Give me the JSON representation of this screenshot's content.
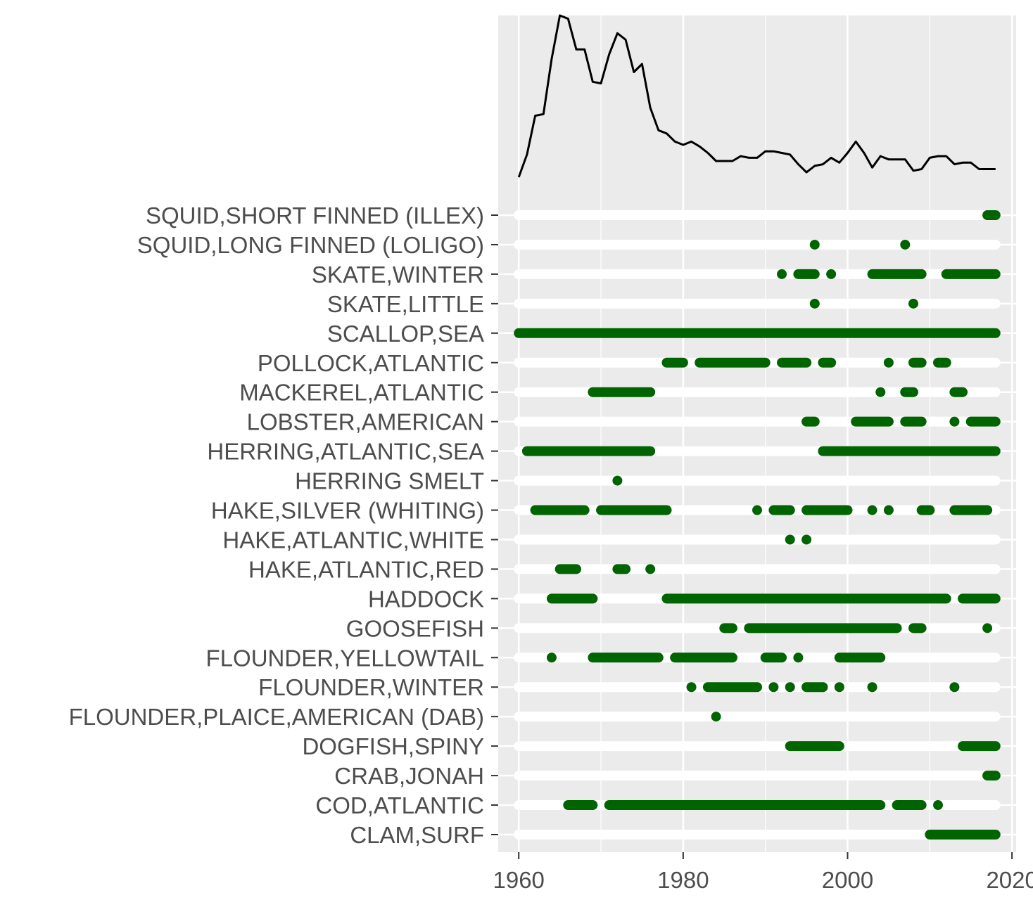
{
  "chart_data": [
    {
      "type": "line",
      "title": "",
      "xlabel": "",
      "ylabel": "",
      "xlim": [
        1957.5,
        2020.5
      ],
      "ylim": [
        0,
        1
      ],
      "grid": true,
      "legend": "none",
      "series_color": "#000000",
      "x": [
        1960,
        1961,
        1962,
        1963,
        1964,
        1965,
        1966,
        1967,
        1968,
        1969,
        1970,
        1971,
        1972,
        1973,
        1974,
        1975,
        1976,
        1977,
        1978,
        1979,
        1980,
        1981,
        1982,
        1983,
        1984,
        1985,
        1986,
        1987,
        1988,
        1989,
        1990,
        1991,
        1992,
        1993,
        1994,
        1995,
        1996,
        1997,
        1998,
        1999,
        2000,
        2001,
        2002,
        2003,
        2004,
        2005,
        2006,
        2007,
        2008,
        2009,
        2010,
        2011,
        2012,
        2013,
        2014,
        2015,
        2016,
        2017,
        2018
      ],
      "y": [
        0.0,
        0.14,
        0.38,
        0.39,
        0.73,
        1.0,
        0.98,
        0.79,
        0.79,
        0.59,
        0.58,
        0.76,
        0.89,
        0.85,
        0.65,
        0.7,
        0.43,
        0.29,
        0.27,
        0.22,
        0.2,
        0.22,
        0.19,
        0.15,
        0.1,
        0.1,
        0.1,
        0.13,
        0.12,
        0.12,
        0.16,
        0.16,
        0.15,
        0.14,
        0.08,
        0.03,
        0.07,
        0.08,
        0.12,
        0.09,
        0.15,
        0.22,
        0.15,
        0.06,
        0.13,
        0.11,
        0.11,
        0.11,
        0.04,
        0.05,
        0.12,
        0.13,
        0.13,
        0.08,
        0.09,
        0.09,
        0.05,
        0.05,
        0.05
      ]
    },
    {
      "type": "scatter",
      "title": "",
      "xlabel": "",
      "ylabel": "",
      "xlim": [
        1957.5,
        2020.5
      ],
      "x_ticks": [
        1960,
        1980,
        2000,
        2020
      ],
      "x_tick_labels": [
        "1960",
        "1980",
        "2000",
        "2020"
      ],
      "x_range_background": [
        1960,
        2018
      ],
      "grid": true,
      "legend": "none",
      "present_color": "#006400",
      "absent_color": "#ffffff",
      "categories": [
        "SQUID,SHORT FINNED (ILLEX)",
        "SQUID,LONG FINNED (LOLIGO)",
        "SKATE,WINTER",
        "SKATE,LITTLE",
        "SCALLOP,SEA",
        "POLLOCK,ATLANTIC",
        "MACKEREL,ATLANTIC",
        "LOBSTER,AMERICAN",
        "HERRING,ATLANTIC,SEA",
        "HERRING SMELT",
        "HAKE,SILVER (WHITING)",
        "HAKE,ATLANTIC,WHITE",
        "HAKE,ATLANTIC,RED",
        "HADDOCK",
        "GOOSEFISH",
        "FLOUNDER,YELLOWTAIL",
        "FLOUNDER,WINTER",
        "FLOUNDER,PLAICE,AMERICAN (DAB)",
        "DOGFISH,SPINY",
        "CRAB,JONAH",
        "COD,ATLANTIC",
        "CLAM,SURF"
      ],
      "presence": [
        [
          [
            2017,
            2018
          ]
        ],
        [
          [
            1996,
            1996
          ],
          [
            2007,
            2007
          ]
        ],
        [
          [
            1992,
            1992
          ],
          [
            1994,
            1996
          ],
          [
            1998,
            1998
          ],
          [
            2003,
            2009
          ],
          [
            2012,
            2018
          ]
        ],
        [
          [
            1996,
            1996
          ],
          [
            2008,
            2008
          ]
        ],
        [
          [
            1960,
            2018
          ]
        ],
        [
          [
            1978,
            1980
          ],
          [
            1982,
            1990
          ],
          [
            1992,
            1995
          ],
          [
            1997,
            1998
          ],
          [
            2005,
            2005
          ],
          [
            2008,
            2009
          ],
          [
            2011,
            2012
          ]
        ],
        [
          [
            1969,
            1976
          ],
          [
            2004,
            2004
          ],
          [
            2007,
            2008
          ],
          [
            2013,
            2014
          ]
        ],
        [
          [
            1995,
            1996
          ],
          [
            2001,
            2005
          ],
          [
            2007,
            2009
          ],
          [
            2013,
            2013
          ],
          [
            2015,
            2018
          ]
        ],
        [
          [
            1961,
            1976
          ],
          [
            1997,
            2018
          ]
        ],
        [
          [
            1972,
            1972
          ]
        ],
        [
          [
            1962,
            1968
          ],
          [
            1970,
            1978
          ],
          [
            1989,
            1989
          ],
          [
            1991,
            1993
          ],
          [
            1995,
            2000
          ],
          [
            2003,
            2003
          ],
          [
            2005,
            2005
          ],
          [
            2009,
            2010
          ],
          [
            2013,
            2017
          ]
        ],
        [
          [
            1993,
            1993
          ],
          [
            1995,
            1995
          ]
        ],
        [
          [
            1965,
            1967
          ],
          [
            1972,
            1973
          ],
          [
            1976,
            1976
          ]
        ],
        [
          [
            1964,
            1969
          ],
          [
            1978,
            2012
          ],
          [
            2014,
            2018
          ]
        ],
        [
          [
            1985,
            1986
          ],
          [
            1988,
            2006
          ],
          [
            2008,
            2009
          ],
          [
            2017,
            2017
          ]
        ],
        [
          [
            1964,
            1964
          ],
          [
            1969,
            1977
          ],
          [
            1979,
            1986
          ],
          [
            1990,
            1992
          ],
          [
            1994,
            1994
          ],
          [
            1999,
            2004
          ]
        ],
        [
          [
            1981,
            1981
          ],
          [
            1983,
            1989
          ],
          [
            1991,
            1991
          ],
          [
            1993,
            1993
          ],
          [
            1995,
            1997
          ],
          [
            1999,
            1999
          ],
          [
            2003,
            2003
          ],
          [
            2013,
            2013
          ]
        ],
        [
          [
            1984,
            1984
          ]
        ],
        [
          [
            1993,
            1999
          ],
          [
            2014,
            2018
          ]
        ],
        [
          [
            2017,
            2018
          ]
        ],
        [
          [
            1966,
            1969
          ],
          [
            1971,
            2004
          ],
          [
            2006,
            2009
          ],
          [
            2011,
            2011
          ]
        ],
        [
          [
            2010,
            2018
          ]
        ]
      ]
    }
  ]
}
